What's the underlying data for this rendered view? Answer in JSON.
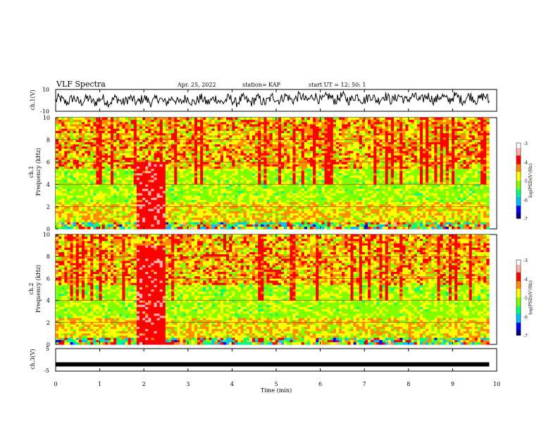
{
  "header": {
    "title": "VLF Spectra",
    "date": "Apr. 25, 2022",
    "station": "station= KAP",
    "start": "start  UT =   12: 50: 1"
  },
  "chart_data": [
    {
      "type": "line",
      "panel": "ch1-waveform",
      "ylabel": "ch.1(V)",
      "ylim": [
        -10,
        10
      ],
      "yticklabels": [
        "10",
        "-10"
      ],
      "xlim": [
        0,
        10
      ],
      "x_end": 9.83,
      "description_series": "noisy signal centered near 0 V, amplitude about ±5 V"
    },
    {
      "type": "heatmap",
      "panel": "ch1-spectrogram",
      "title": "ch.1",
      "ylabel": "Frequency (kHz)",
      "ylim": [
        0,
        10
      ],
      "yticks": [
        0,
        2,
        4,
        6,
        8,
        10
      ],
      "xlim": [
        0,
        10
      ],
      "x_end": 9.83,
      "burst_interval_min": [
        1.85,
        2.5
      ],
      "burst_top_kHz": 6.0,
      "colorbar": {
        "label": "log(PSD)(V²/Hz)",
        "range": [
          -7,
          -3
        ],
        "ticks": [
          "-3",
          "-4",
          "-5",
          "-6",
          "-7"
        ]
      }
    },
    {
      "type": "heatmap",
      "panel": "ch2-spectrogram",
      "title": "ch.2",
      "ylabel": "Frequency (kHz)",
      "ylim": [
        0,
        10
      ],
      "yticks": [
        0,
        2,
        4,
        6,
        8,
        10
      ],
      "xlim": [
        0,
        10
      ],
      "x_end": 9.83,
      "burst_interval_min": [
        1.85,
        2.5
      ],
      "burst_top_kHz": 9.0,
      "colorbar": {
        "label": "log(PSD)(V²/Hz)",
        "range": [
          -7,
          -3
        ],
        "ticks": [
          "-3",
          "-4",
          "-5",
          "-6",
          "-7"
        ]
      }
    },
    {
      "type": "line",
      "panel": "ch3-waveform",
      "ylabel": "ch.3(V)",
      "ylim": [
        -5,
        5
      ],
      "yticklabels": [
        "5",
        "-5"
      ],
      "xlim": [
        0,
        10
      ],
      "x_end": 9.83,
      "level_V": -2,
      "xlabel": "Time (min)",
      "xticks": [
        "0",
        "1",
        "2",
        "3",
        "4",
        "5",
        "6",
        "7",
        "8",
        "9",
        "10"
      ]
    }
  ],
  "colors": {
    "scale": [
      "#00007f",
      "#0000ff",
      "#00bfff",
      "#00ff7f",
      "#7fff00",
      "#ffff00",
      "#ff8c00",
      "#ff0000",
      "#ffb0b0",
      "#ffffff"
    ]
  }
}
